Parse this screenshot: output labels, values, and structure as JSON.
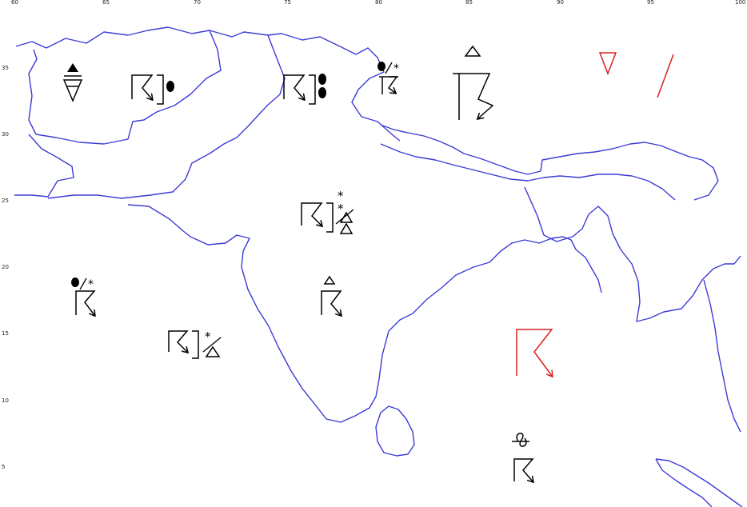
{
  "map": {
    "longitude_ticks": [
      "60",
      "65",
      "70",
      "75",
      "80",
      "85",
      "90",
      "95",
      "100"
    ],
    "latitude_ticks": [
      "35",
      "30",
      "25",
      "20",
      "15",
      "10",
      "5"
    ],
    "colors": {
      "coastline": "#3c3cd6",
      "symbols": "#000000",
      "highlight": "#d62020"
    },
    "symbols": [
      "rain-shower-hail-symbol",
      "thunderstorm-rain-symbol",
      "thunderstorm-heavy-rain-symbol",
      "thunderstorm-rain-snow-symbol",
      "thunderstorm-hail-symbol",
      "thunderstorm-snow-hail-symbol",
      "thunderstorm-rain-snow-symbol",
      "thunderstorm-hail-symbol",
      "thunderstorm-snow-hail-symbol",
      "thunderstorm-highlight-symbol",
      "thunderstorm-duststorm-symbol",
      "shower-highlight-symbol"
    ]
  }
}
